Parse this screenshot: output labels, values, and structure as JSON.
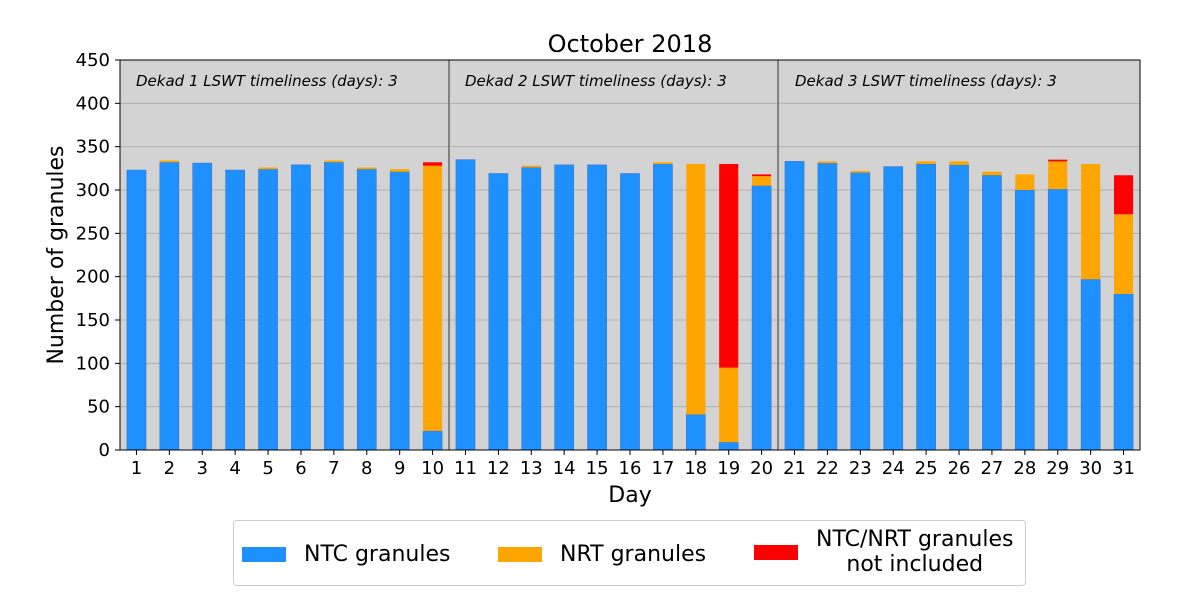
{
  "chart_data": {
    "type": "bar",
    "stacked": true,
    "title": "October 2018",
    "xlabel": "Day",
    "ylabel": "Number of granules",
    "ylim": [
      0,
      450
    ],
    "yticks": [
      0,
      50,
      100,
      150,
      200,
      250,
      300,
      350,
      400,
      450
    ],
    "grid": true,
    "categories": [
      "1",
      "2",
      "3",
      "4",
      "5",
      "6",
      "7",
      "8",
      "9",
      "10",
      "11",
      "12",
      "13",
      "14",
      "15",
      "16",
      "17",
      "18",
      "19",
      "20",
      "21",
      "22",
      "23",
      "24",
      "25",
      "26",
      "27",
      "28",
      "29",
      "30",
      "31"
    ],
    "series": [
      {
        "name": "NTC granules",
        "color": "#1e90ff",
        "values": [
          323,
          332,
          331,
          323,
          324,
          329,
          332,
          324,
          321,
          22,
          335,
          319,
          326,
          329,
          329,
          319,
          330,
          41,
          9,
          305,
          333,
          331,
          320,
          327,
          330,
          329,
          317,
          300,
          301,
          197,
          180
        ]
      },
      {
        "name": "NRT granules",
        "color": "#ffa500",
        "values": [
          0,
          2,
          0,
          0,
          2,
          0,
          2,
          2,
          3,
          306,
          0,
          0,
          2,
          0,
          0,
          0,
          2,
          289,
          86,
          11,
          0,
          2,
          2,
          0,
          3,
          4,
          4,
          18,
          32,
          133,
          92
        ]
      },
      {
        "name": "NTC/NRT granules\nnot included",
        "color": "#ff0000",
        "values": [
          0,
          0,
          0,
          0,
          0,
          0,
          0,
          0,
          0,
          4,
          0,
          0,
          0,
          0,
          0,
          0,
          0,
          0,
          235,
          2,
          0,
          0,
          0,
          0,
          0,
          0,
          0,
          0,
          2,
          0,
          45
        ]
      }
    ],
    "dekad_dividers_after": [
      "10",
      "20"
    ],
    "annotations": [
      "Dekad 1 LSWT timeliness (days): 3",
      "Dekad 2 LSWT timeliness (days): 3",
      "Dekad 3 LSWT timeliness (days): 3"
    ],
    "legend_position": "bottom-center"
  }
}
